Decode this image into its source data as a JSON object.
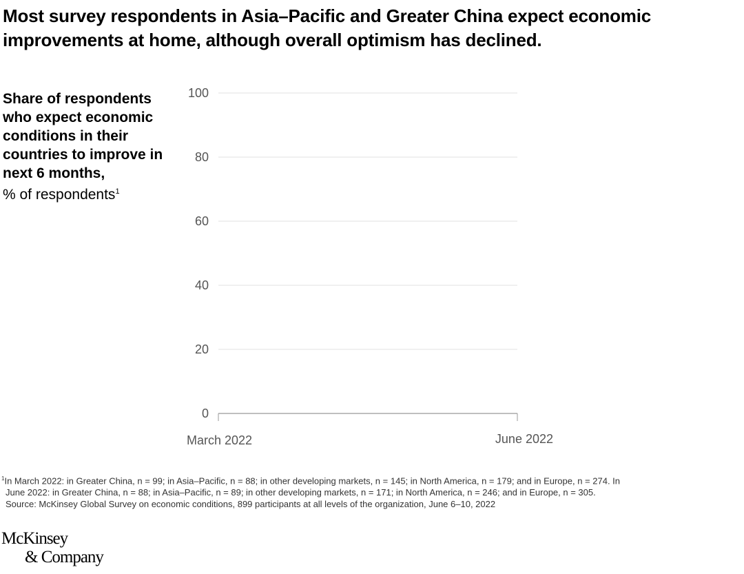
{
  "title": "Most survey respondents in Asia–Pacific and Greater China expect economic improvements at home, although overall optimism has declined.",
  "chart_data": {
    "type": "line",
    "title": "Most survey respondents in Asia–Pacific and Greater China expect economic improvements at home, although overall optimism has declined.",
    "ylabel_bold": "Share of respondents who expect economic conditions in their countries to improve in next 6 months,",
    "ylabel_unit": "% of respondents",
    "ylabel_sup": "1",
    "categories": [
      "March 2022",
      "June 2022"
    ],
    "ylim": [
      0,
      100
    ],
    "yticks": [
      "0",
      "20",
      "40",
      "60",
      "80",
      "100"
    ],
    "grid": true,
    "series": []
  },
  "footnotes": [
    "In March 2022: in Greater China, n = 99; in Asia–Pacific, n = 88; in other developing markets, n = 145; in North America, n = 179; and in Europe, n = 274. In",
    "June 2022: in Greater China, n = 88; in Asia–Pacific, n = 89; in other developing markets, n = 171; in North America, n = 246; and in Europe, n = 305.",
    "Source: McKinsey Global Survey on economic conditions, 899 participants at all levels of the organization, June 6–10, 2022"
  ],
  "footnote_marker": "1",
  "logo": {
    "line1": "McKinsey",
    "line2": "& Company"
  },
  "colors": {
    "grid": "#e0e0e0",
    "axis": "#999999",
    "tick_text": "#555555"
  }
}
